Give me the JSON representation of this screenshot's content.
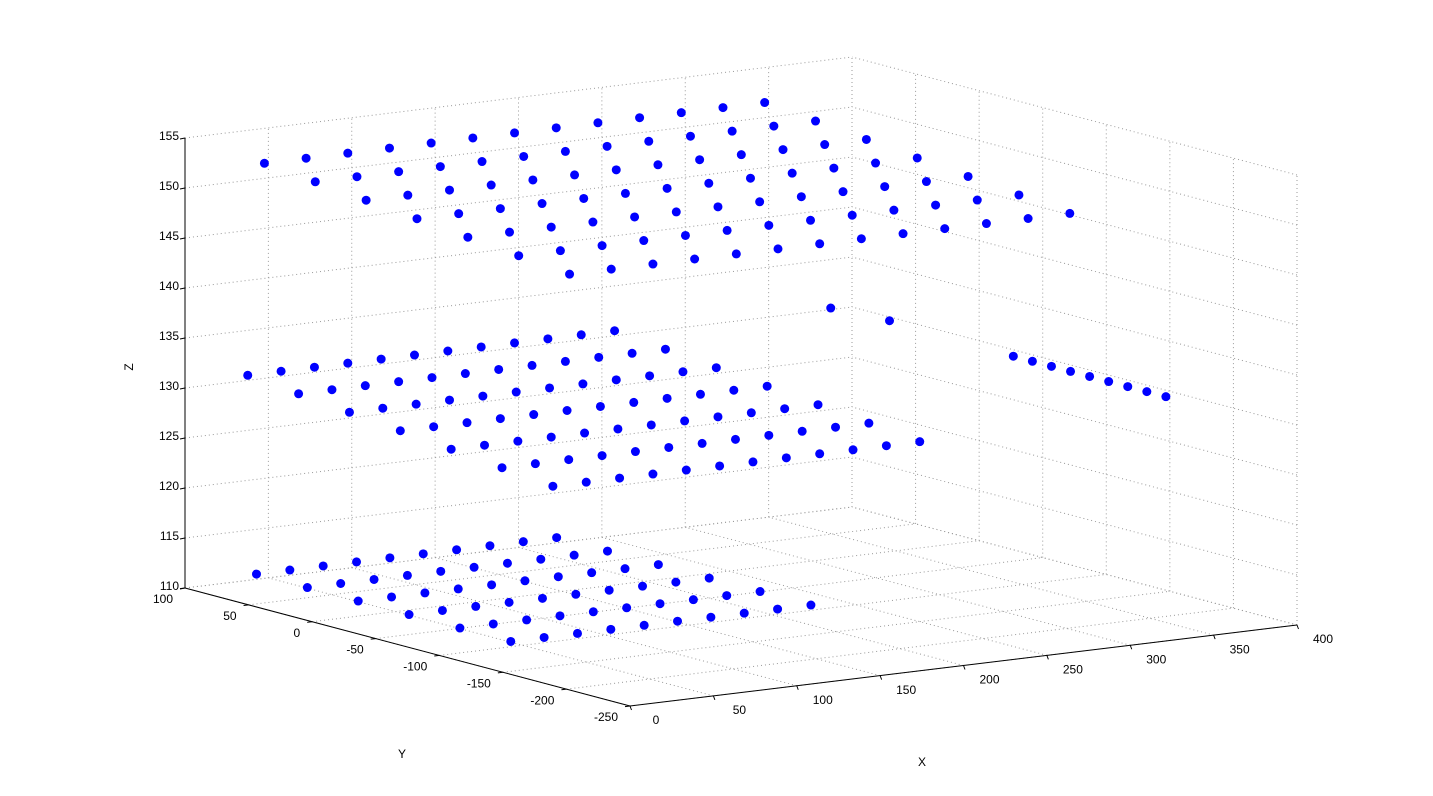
{
  "chart_data": {
    "type": "scatter3d",
    "xlabel": "X",
    "ylabel": "Y",
    "zlabel": "Z",
    "xlim": [
      0,
      400
    ],
    "ylim": [
      -250,
      100
    ],
    "zlim": [
      110,
      155
    ],
    "xticks": [
      0,
      50,
      100,
      150,
      200,
      250,
      300,
      350,
      400
    ],
    "yticks": [
      -250,
      -200,
      -150,
      -100,
      -50,
      0,
      50,
      100
    ],
    "zticks": [
      110,
      115,
      120,
      125,
      130,
      135,
      140,
      145,
      150,
      155
    ],
    "grid": true,
    "color": "#0000ff",
    "x": [
      40,
      65,
      90,
      115,
      140,
      165,
      190,
      215,
      240,
      265,
      290,
      315,
      340,
      40,
      65,
      90,
      115,
      140,
      165,
      190,
      215,
      240,
      265,
      290,
      315,
      340,
      40,
      65,
      90,
      115,
      140,
      165,
      190,
      215,
      240,
      265,
      290,
      315,
      340,
      40,
      65,
      90,
      115,
      140,
      165,
      190,
      215,
      240,
      265,
      290,
      315,
      340,
      40,
      65,
      90,
      115,
      140,
      165,
      190,
      215,
      240,
      265,
      290,
      315,
      340,
      40,
      65,
      90,
      115,
      140,
      165,
      190,
      215,
      240,
      265,
      290,
      315,
      340,
      40,
      65,
      90,
      115,
      140,
      165,
      190,
      215,
      240,
      265,
      290,
      315,
      340,
      30,
      50,
      70,
      90,
      110,
      130,
      150,
      170,
      190,
      210,
      230,
      250,
      30,
      50,
      70,
      90,
      110,
      130,
      150,
      170,
      190,
      210,
      230,
      250,
      30,
      50,
      70,
      90,
      110,
      130,
      150,
      170,
      190,
      210,
      230,
      250,
      30,
      50,
      70,
      90,
      110,
      130,
      150,
      170,
      190,
      210,
      230,
      250,
      30,
      50,
      70,
      90,
      110,
      130,
      150,
      170,
      190,
      210,
      230,
      250,
      30,
      50,
      70,
      90,
      110,
      130,
      150,
      170,
      190,
      210,
      230,
      250,
      30,
      50,
      70,
      90,
      110,
      130,
      150,
      170,
      190,
      210,
      230,
      250,
      390,
      390,
      390,
      390,
      390,
      390,
      390,
      390,
      390,
      270,
      250,
      20,
      40,
      60,
      80,
      100,
      120,
      140,
      160,
      180,
      200,
      20,
      40,
      60,
      80,
      100,
      120,
      140,
      160,
      180,
      200,
      20,
      40,
      60,
      80,
      100,
      120,
      140,
      160,
      180,
      200,
      20,
      40,
      60,
      80,
      100,
      120,
      140,
      160,
      180,
      200,
      20,
      40,
      60,
      80,
      100,
      120,
      140,
      160,
      180,
      200,
      20,
      40,
      60,
      80,
      100,
      120,
      140,
      160,
      180,
      200
    ],
    "y": [
      90,
      90,
      90,
      90,
      90,
      90,
      90,
      90,
      90,
      90,
      90,
      90,
      90,
      50,
      50,
      50,
      50,
      50,
      50,
      50,
      50,
      50,
      50,
      50,
      50,
      50,
      10,
      10,
      10,
      10,
      10,
      10,
      10,
      10,
      10,
      10,
      10,
      10,
      10,
      -30,
      -30,
      -30,
      -30,
      -30,
      -30,
      -30,
      -30,
      -30,
      -30,
      -30,
      -30,
      -30,
      -70,
      -70,
      -70,
      -70,
      -70,
      -70,
      -70,
      -70,
      -70,
      -70,
      -70,
      -70,
      -70,
      -110,
      -110,
      -110,
      -110,
      -110,
      -110,
      -110,
      -110,
      -110,
      -110,
      -110,
      -110,
      -110,
      -150,
      -150,
      -150,
      -150,
      -150,
      -150,
      -150,
      -150,
      -150,
      -150,
      -150,
      -150,
      -150,
      90,
      90,
      90,
      90,
      90,
      90,
      90,
      90,
      90,
      90,
      90,
      90,
      50,
      50,
      50,
      50,
      50,
      50,
      50,
      50,
      50,
      50,
      50,
      50,
      10,
      10,
      10,
      10,
      10,
      10,
      10,
      10,
      10,
      10,
      10,
      10,
      -30,
      -30,
      -30,
      -30,
      -30,
      -30,
      -30,
      -30,
      -30,
      -30,
      -30,
      -30,
      -70,
      -70,
      -70,
      -70,
      -70,
      -70,
      -70,
      -70,
      -70,
      -70,
      -70,
      -70,
      -110,
      -110,
      -110,
      -110,
      -110,
      -110,
      -110,
      -110,
      -110,
      -110,
      -110,
      -110,
      -150,
      -150,
      -150,
      -150,
      -150,
      -150,
      -150,
      -150,
      -150,
      -150,
      -150,
      -150,
      -160,
      -145,
      -130,
      -115,
      -100,
      -85,
      -70,
      -55,
      -40,
      -100,
      -80,
      70,
      70,
      70,
      70,
      70,
      70,
      70,
      70,
      70,
      70,
      30,
      30,
      30,
      30,
      30,
      30,
      30,
      30,
      30,
      30,
      -10,
      -10,
      -10,
      -10,
      -10,
      -10,
      -10,
      -10,
      -10,
      -10,
      -50,
      -50,
      -50,
      -50,
      -50,
      -50,
      -50,
      -50,
      -50,
      -50,
      -90,
      -90,
      -90,
      -90,
      -90,
      -90,
      -90,
      -90,
      -90,
      -90,
      -130,
      -130,
      -130,
      -130,
      -130,
      -130,
      -130,
      -130,
      -130,
      -130
    ],
    "z": [
      152,
      152,
      152,
      152,
      152,
      152,
      152,
      152,
      152,
      152,
      152,
      152,
      152,
      151.5,
      151.5,
      151.5,
      151.5,
      151.5,
      151.5,
      151.5,
      151.5,
      151.5,
      151.5,
      151.5,
      151.5,
      151.5,
      151,
      151,
      151,
      151,
      151,
      151,
      151,
      151,
      151,
      151,
      151,
      151,
      151,
      150.5,
      150.5,
      150.5,
      150.5,
      150.5,
      150.5,
      150.5,
      150.5,
      150.5,
      150.5,
      150.5,
      150.5,
      150.5,
      150,
      150,
      150,
      150,
      150,
      150,
      150,
      150,
      150,
      150,
      150,
      150,
      150,
      149.5,
      149.5,
      149.5,
      149.5,
      149.5,
      149.5,
      149.5,
      149.5,
      149.5,
      149.5,
      149.5,
      149.5,
      149.5,
      149,
      149,
      149,
      149,
      149,
      149,
      149,
      149,
      149,
      149,
      149,
      149,
      149,
      131,
      131,
      131,
      131,
      131,
      131,
      131,
      131,
      131,
      131,
      131,
      131,
      130.5,
      130.5,
      130.5,
      130.5,
      130.5,
      130.5,
      130.5,
      130.5,
      130.5,
      130.5,
      130.5,
      130.5,
      130,
      130,
      130,
      130,
      130,
      130,
      130,
      130,
      130,
      130,
      130,
      130,
      129.5,
      129.5,
      129.5,
      129.5,
      129.5,
      129.5,
      129.5,
      129.5,
      129.5,
      129.5,
      129.5,
      129.5,
      129,
      129,
      129,
      129,
      129,
      129,
      129,
      129,
      129,
      129,
      129,
      129,
      128.5,
      128.5,
      128.5,
      128.5,
      128.5,
      128.5,
      128.5,
      128.5,
      128.5,
      128.5,
      128.5,
      128.5,
      128,
      128,
      128,
      128,
      128,
      128,
      128,
      128,
      128,
      128,
      128,
      128,
      130,
      130,
      130,
      130,
      130,
      130,
      130,
      130,
      130,
      138,
      139,
      112,
      112,
      112,
      112,
      112,
      112,
      112,
      112,
      112,
      112,
      112,
      112,
      112,
      112,
      112,
      112,
      112,
      112,
      112,
      112,
      112,
      112,
      112,
      112,
      112,
      112,
      112,
      112,
      112,
      112,
      112,
      112,
      112,
      112,
      112,
      112,
      112,
      112,
      112,
      112,
      112,
      112,
      112,
      112,
      112,
      112,
      112,
      112,
      112,
      112,
      112,
      112,
      112,
      112,
      112,
      112,
      112,
      112,
      112,
      112
    ]
  }
}
